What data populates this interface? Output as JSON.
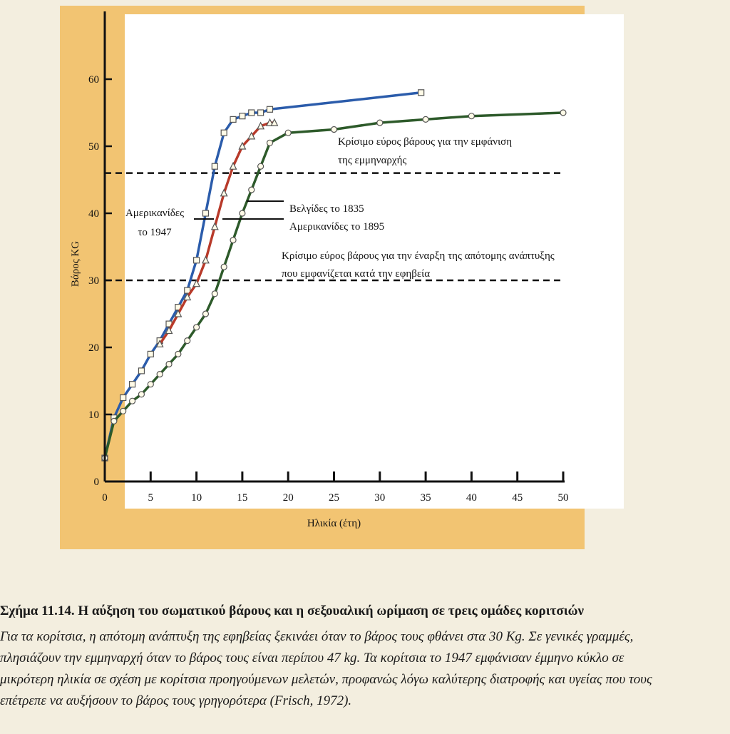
{
  "figure": {
    "caption_title": "Σχήμα 11.14. Η αύξηση του σωματικού βάρους και η σεξουαλική ωρίμαση σε τρεις ομάδες κοριτσιών",
    "caption_lines": [
      "Για τα κορίτσια, η απότομη ανάπτυξη της εφηβείας ξεκινάει όταν το βάρος τους φθάνει στα 30 Kg. Σε γενικές γραμμές,",
      "πλησιάζουν την εμμηναρχή όταν το βάρος τους είναι περίπου 47 kg. Τα κορίτσια το 1947 εμφάνισαν έμμηνο κύκλο σε",
      "μικρότερη ηλικία σε σχέση με κορίτσια προηγούμενων μελετών, προφανώς λόγω καλύτερης διατροφής και υγείας που τους",
      "επέτρεπε να αυξήσουν το βάρος τους γρηγορότερα (Frisch, 1972)."
    ]
  },
  "chart_data": {
    "type": "line",
    "title": "",
    "xlabel": "Ηλικία (έτη)",
    "ylabel": "Βάρος KG",
    "xlim": [
      0,
      50
    ],
    "ylim": [
      0,
      60
    ],
    "xticks": [
      0,
      5,
      10,
      15,
      20,
      25,
      30,
      35,
      40,
      45,
      50
    ],
    "yticks": [
      0,
      10,
      20,
      30,
      40,
      50,
      60
    ],
    "grid": false,
    "series": [
      {
        "name": "Αμερικανίδες το 1947",
        "color": "#2b5cab",
        "marker": "square",
        "x": [
          0,
          1,
          2,
          3,
          4,
          5,
          6,
          7,
          8,
          9,
          10,
          11,
          12,
          13,
          14,
          15,
          16,
          17,
          18,
          34.5
        ],
        "y": [
          3.5,
          9.5,
          12.5,
          14.5,
          16.5,
          19,
          21,
          23.5,
          26,
          28.5,
          33,
          40,
          47,
          52,
          54,
          54.5,
          55,
          55,
          55.5,
          58
        ]
      },
      {
        "name": "Βελγίδες το 1835",
        "color": "#b83a2a",
        "marker": "triangle",
        "x": [
          6,
          7,
          8,
          9,
          10,
          11,
          12,
          13,
          14,
          15,
          16,
          17,
          18,
          18.5
        ],
        "y": [
          20.5,
          22.5,
          25,
          27.5,
          29.5,
          33,
          38,
          43,
          47,
          50,
          51.5,
          53,
          53.5,
          53.5
        ]
      },
      {
        "name": "Αμερικανίδες το 1895",
        "color": "#2d5a2a",
        "marker": "circle",
        "x": [
          0,
          1,
          2,
          3,
          4,
          5,
          6,
          7,
          8,
          9,
          10,
          11,
          12,
          13,
          14,
          15,
          16,
          17,
          18,
          20,
          25,
          30,
          35,
          40,
          50
        ],
        "y": [
          3.5,
          9,
          10.5,
          12,
          13,
          14.5,
          16,
          17.5,
          19,
          21,
          23,
          25,
          28,
          32,
          36,
          40,
          43.5,
          47,
          50.5,
          52,
          52.5,
          53.5,
          54,
          54.5,
          55
        ]
      }
    ],
    "reference_lines": [
      {
        "y": 46,
        "label_lines": [
          "Κρίσιμο εύρος βάρους για την εμφάνιση",
          "της εμμηναρχής"
        ]
      },
      {
        "y": 30,
        "label_lines": [
          "Κρίσιμο εύρος βάρους για την έναρξη της απότομης ανάπτυξης",
          "που εμφανίζεται κατά την εφηβεία"
        ]
      }
    ],
    "annotations": {
      "american_1947": [
        "Αμερικανίδες",
        "το 1947"
      ],
      "belgian_1835": "Βελγίδες το 1835",
      "american_1895": "Αμερικανίδες το 1895"
    }
  }
}
